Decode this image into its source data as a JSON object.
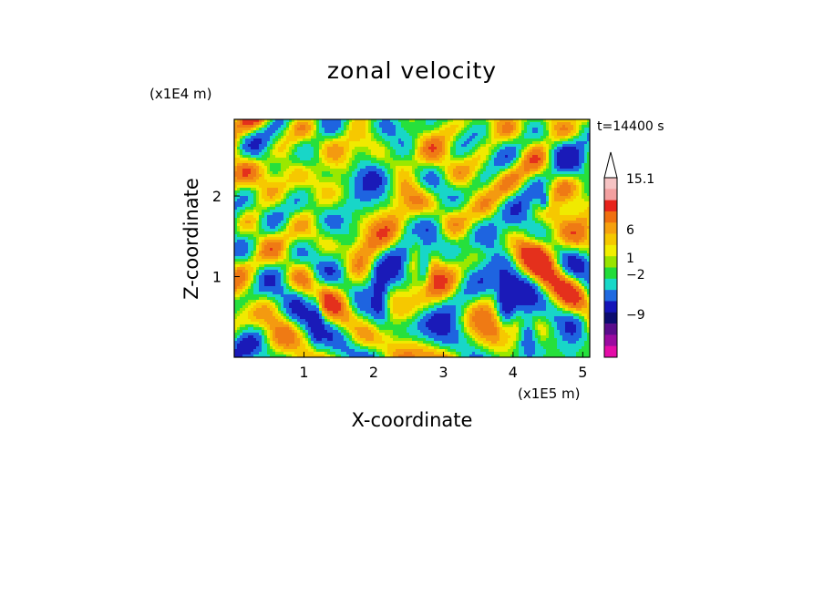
{
  "chart_data": {
    "type": "heatmap",
    "title": "zonal velocity",
    "xlabel": "X-coordinate",
    "ylabel": "Z-coordinate",
    "x_scale_label": "(x1E5 m)",
    "y_scale_label": "(x1E4 m)",
    "time_label": "t=14400 s",
    "xlim": [
      0,
      5.1
    ],
    "ylim": [
      0,
      2.95
    ],
    "x_ticks": [
      1,
      2,
      3,
      4,
      5
    ],
    "x_tick_labels": [
      "1",
      "2",
      "3",
      "4",
      "5"
    ],
    "y_ticks": [
      1,
      2
    ],
    "y_tick_labels": [
      "1",
      "2"
    ],
    "colorbar": {
      "levels_labeled": [
        "15.1",
        "6",
        "1",
        "−2",
        "−9"
      ],
      "colors_top_to_bottom": [
        "#f6c3c3",
        "#f3a0a0",
        "#e8241c",
        "#f07010",
        "#f6a10e",
        "#f5c800",
        "#f1ee00",
        "#98e400",
        "#22dc3a",
        "#18d8c8",
        "#1f6ae0",
        "#1414b8",
        "#0c0c70",
        "#5a0c8c",
        "#9a0aa0",
        "#e40ca8"
      ]
    },
    "field_colors_low_to_high": [
      "#1a1ab8",
      "#1e64e0",
      "#18d6c8",
      "#26e03c",
      "#9ae800",
      "#f0ea00",
      "#f6c800",
      "#f49a10",
      "#ef7a14",
      "#e4301c"
    ],
    "note_features": [
      "strong negative (blue) cores near x=2.7 and x=4.1, z~1.2",
      "positive (orange/red) maxima near x=4.3-4.6, z~1.1"
    ]
  }
}
